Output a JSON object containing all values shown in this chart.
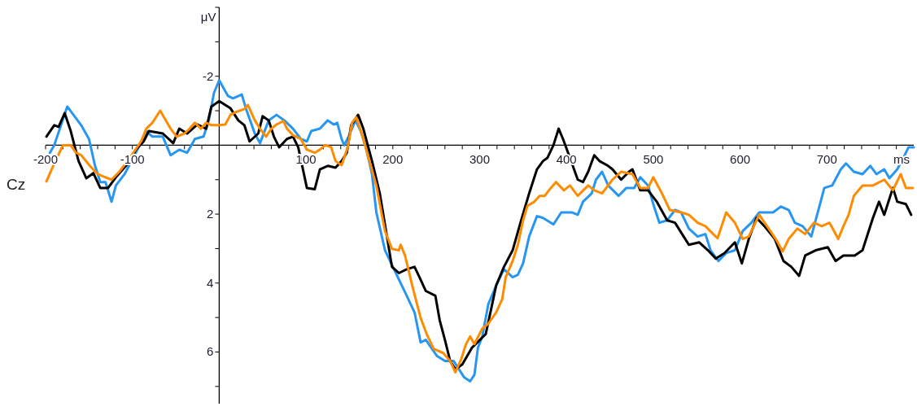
{
  "chart_data": {
    "type": "line",
    "title": "Cz",
    "xlabel": "ms",
    "ylabel": "μV",
    "xlim": [
      -200,
      800
    ],
    "ylim": [
      7.5,
      -4
    ],
    "xticks": [
      -200,
      {
        "value": -180,
        "label": null
      },
      {
        "value": -160,
        "label": null
      },
      {
        "value": -140,
        "label": null
      },
      {
        "value": -120,
        "label": null
      },
      -100,
      {
        "value": -80,
        "label": null
      },
      {
        "value": -60,
        "label": null
      },
      {
        "value": -40,
        "label": null
      },
      {
        "value": -20,
        "label": null
      },
      {
        "value": 0,
        "label": null
      },
      {
        "value": 20,
        "label": null
      },
      {
        "value": 40,
        "label": null
      },
      {
        "value": 60,
        "label": null
      },
      {
        "value": 80,
        "label": null
      },
      100,
      {
        "value": 120,
        "label": null
      },
      {
        "value": 140,
        "label": null
      },
      {
        "value": 160,
        "label": null
      },
      {
        "value": 180,
        "label": null
      },
      200,
      {
        "value": 220,
        "label": null
      },
      {
        "value": 240,
        "label": null
      },
      {
        "value": 260,
        "label": null
      },
      {
        "value": 280,
        "label": null
      },
      300,
      {
        "value": 320,
        "label": null
      },
      {
        "value": 340,
        "label": null
      },
      {
        "value": 360,
        "label": null
      },
      {
        "value": 380,
        "label": null
      },
      400,
      {
        "value": 420,
        "label": null
      },
      {
        "value": 440,
        "label": null
      },
      {
        "value": 460,
        "label": null
      },
      {
        "value": 480,
        "label": null
      },
      500,
      {
        "value": 520,
        "label": null
      },
      {
        "value": 540,
        "label": null
      },
      {
        "value": 560,
        "label": null
      },
      {
        "value": 580,
        "label": null
      },
      600,
      {
        "value": 620,
        "label": null
      },
      {
        "value": 640,
        "label": null
      },
      {
        "value": 660,
        "label": null
      },
      {
        "value": 680,
        "label": null
      },
      700,
      {
        "value": 720,
        "label": null
      },
      {
        "value": 740,
        "label": null
      },
      {
        "value": 760,
        "label": null
      },
      {
        "value": 780,
        "label": null
      }
    ],
    "yticks": [
      {
        "value": -4,
        "label": null
      },
      {
        "value": -3,
        "label": null
      },
      -2,
      {
        "value": -1,
        "label": null
      },
      {
        "value": 0,
        "label": null
      },
      {
        "value": 1,
        "label": null
      },
      2,
      {
        "value": 3,
        "label": null
      },
      4,
      {
        "value": 5,
        "label": null
      },
      6,
      {
        "value": 7,
        "label": null
      }
    ],
    "series": [
      {
        "color": "#2896f0",
        "x": [
          -195,
          -190,
          -175,
          -159,
          -150,
          -143,
          -137,
          -131,
          -124,
          -119,
          -109,
          -96,
          -84,
          -77,
          -65,
          -56,
          -46,
          -37,
          -28,
          -18,
          -12,
          -6,
          0,
          10,
          16,
          26,
          31,
          41,
          47,
          57,
          66,
          75,
          85,
          94,
          101,
          106,
          116,
          125,
          132,
          136,
          141,
          144,
          149,
          157,
          163,
          169,
          176,
          181,
          191,
          209,
          216,
          225,
          232,
          238,
          251,
          260,
          270,
          282,
          289,
          294,
          298,
          303,
          310,
          319,
          328,
          338,
          344,
          350,
          357,
          366,
          373,
          385,
          394,
          406,
          413,
          419,
          429,
          434,
          441,
          448,
          460,
          469,
          478,
          485,
          494,
          500,
          507,
          516,
          525,
          532,
          541,
          551,
          560,
          566,
          575,
          584,
          594,
          603,
          613,
          622,
          638,
          647,
          656,
          663,
          672,
          682,
          687,
          697,
          706,
          716,
          722,
          731,
          741,
          750,
          757,
          766,
          772,
          781,
          788,
          794,
          800
        ],
        "values": [
          0.22,
          0.0,
          -1.12,
          -0.58,
          -0.18,
          0.6,
          1.07,
          1.07,
          1.64,
          1.17,
          0.84,
          0.22,
          -0.41,
          -0.25,
          -0.25,
          0.29,
          0.13,
          0.22,
          -0.18,
          -0.25,
          -0.72,
          -1.52,
          -1.88,
          -1.43,
          -1.36,
          -1.47,
          -1.05,
          -0.34,
          -0.06,
          -0.72,
          -0.88,
          -0.72,
          -0.48,
          -0.18,
          -0.11,
          -0.41,
          -0.48,
          -0.72,
          -0.6,
          -0.65,
          -0.18,
          0.0,
          -0.25,
          -0.72,
          -0.41,
          0.06,
          0.84,
          1.95,
          3.05,
          4.0,
          4.37,
          4.85,
          5.72,
          5.65,
          6.12,
          6.26,
          6.26,
          6.73,
          6.85,
          6.66,
          5.88,
          5.55,
          4.61,
          4.07,
          3.6,
          3.83,
          3.76,
          3.43,
          2.65,
          2.06,
          2.11,
          2.3,
          1.95,
          1.95,
          2.02,
          1.64,
          1.4,
          1.0,
          0.77,
          1.17,
          1.47,
          1.24,
          1.24,
          0.93,
          1.17,
          1.71,
          2.25,
          2.18,
          1.88,
          1.95,
          2.42,
          2.65,
          2.58,
          3.05,
          3.36,
          3.13,
          3.05,
          2.49,
          2.25,
          1.95,
          1.95,
          1.78,
          1.88,
          2.25,
          2.35,
          2.65,
          2.18,
          1.24,
          1.17,
          0.7,
          0.53,
          0.77,
          0.84,
          0.6,
          0.84,
          0.7,
          0.96,
          0.7,
          0.37,
          0.06,
          0.06
        ]
      },
      {
        "color": "#000000",
        "x": [
          -199,
          -190,
          -185,
          -178,
          -171,
          -162,
          -153,
          -145,
          -137,
          -128,
          -119,
          -105,
          -96,
          -87,
          -81,
          -65,
          -53,
          -46,
          -37,
          -25,
          -15,
          -9,
          0,
          13,
          22,
          29,
          35,
          45,
          50,
          57,
          63,
          69,
          78,
          85,
          91,
          101,
          110,
          116,
          125,
          134,
          141,
          147,
          152,
          160,
          166,
          176,
          185,
          199,
          207,
          216,
          225,
          232,
          238,
          249,
          254,
          260,
          266,
          272,
          280,
          291,
          307,
          313,
          319,
          328,
          338,
          347,
          357,
          366,
          373,
          378,
          385,
          391,
          396,
          404,
          413,
          419,
          425,
          432,
          438,
          448,
          453,
          463,
          472,
          476,
          485,
          494,
          504,
          516,
          525,
          535,
          541,
          553,
          563,
          572,
          582,
          594,
          602,
          610,
          619,
          628,
          640,
          650,
          659,
          668,
          675,
          687,
          701,
          710,
          719,
          732,
          741,
          753,
          760,
          766,
          776,
          781,
          791,
          797
        ],
        "values": [
          -0.25,
          -0.58,
          -0.53,
          -0.93,
          -0.41,
          0.46,
          0.96,
          0.81,
          1.24,
          1.24,
          0.93,
          0.53,
          0.13,
          -0.11,
          -0.41,
          -0.34,
          -0.06,
          -0.48,
          -0.34,
          -0.6,
          -0.48,
          -1.12,
          -1.28,
          -1.07,
          -0.72,
          -0.58,
          -0.11,
          -0.34,
          -0.84,
          -0.72,
          -0.25,
          0.06,
          -0.18,
          -0.25,
          0.06,
          1.24,
          1.28,
          0.7,
          0.6,
          0.65,
          0.46,
          0.22,
          -0.58,
          -0.88,
          -0.48,
          0.46,
          1.4,
          3.53,
          3.71,
          3.6,
          3.53,
          3.9,
          4.23,
          4.37,
          5.08,
          5.65,
          6.26,
          6.5,
          6.36,
          5.88,
          5.48,
          4.78,
          4.07,
          3.53,
          3.05,
          2.25,
          1.4,
          0.7,
          0.46,
          0.37,
          0.0,
          -0.48,
          -0.18,
          0.37,
          1.0,
          1.07,
          0.77,
          0.29,
          0.46,
          0.6,
          0.7,
          1.0,
          0.77,
          0.7,
          1.31,
          1.31,
          1.64,
          2.18,
          2.25,
          2.65,
          2.89,
          2.82,
          3.05,
          3.29,
          3.13,
          2.82,
          3.43,
          2.72,
          2.11,
          2.35,
          2.72,
          3.36,
          3.53,
          3.79,
          3.2,
          3.05,
          2.96,
          3.36,
          3.2,
          3.2,
          3.05,
          2.11,
          1.64,
          2.02,
          1.24,
          1.64,
          1.71,
          2.02
        ]
      },
      {
        "color": "#ff8c00",
        "x": [
          -199,
          -190,
          -180,
          -171,
          -165,
          -159,
          -149,
          -140,
          -131,
          -124,
          -115,
          -103,
          -90,
          -84,
          -77,
          -68,
          -56,
          -49,
          -40,
          -34,
          -28,
          -21,
          -15,
          -9,
          0,
          7,
          13,
          19,
          29,
          33,
          41,
          47,
          54,
          60,
          66,
          74,
          78,
          85,
          94,
          101,
          110,
          116,
          122,
          129,
          134,
          141,
          148,
          153,
          158,
          166,
          172,
          181,
          188,
          191,
          199,
          207,
          209,
          214,
          223,
          232,
          239,
          247,
          258,
          266,
          272,
          279,
          284,
          289,
          294,
          303,
          310,
          319,
          326,
          330,
          338,
          344,
          350,
          355,
          363,
          369,
          375,
          382,
          388,
          397,
          404,
          413,
          425,
          432,
          441,
          453,
          463,
          476,
          485,
          494,
          500,
          510,
          519,
          532,
          541,
          551,
          560,
          569,
          574,
          584,
          594,
          603,
          610,
          622,
          631,
          641,
          649,
          656,
          666,
          675,
          685,
          694,
          703,
          713,
          719,
          725,
          731,
          741,
          753,
          766,
          776,
          785,
          791,
          799
        ],
        "values": [
          1.05,
          0.53,
          0.0,
          0.0,
          0.22,
          0.29,
          0.6,
          0.84,
          0.93,
          1.0,
          0.77,
          0.37,
          -0.11,
          -0.48,
          -0.65,
          -1.0,
          -0.48,
          -0.25,
          -0.34,
          -0.48,
          -0.65,
          -0.48,
          -0.65,
          -0.58,
          -0.58,
          -0.6,
          -0.88,
          -0.96,
          -1.05,
          -1.17,
          -0.72,
          -0.48,
          -0.25,
          -0.48,
          -0.6,
          -0.7,
          -0.48,
          -0.29,
          -0.18,
          0.13,
          0.22,
          0.13,
          0.0,
          0.06,
          0.46,
          0.58,
          0.06,
          -0.65,
          -0.81,
          -0.18,
          0.37,
          1.17,
          2.11,
          2.49,
          3.01,
          3.05,
          2.89,
          3.2,
          4.14,
          5.01,
          5.48,
          5.91,
          6.03,
          6.26,
          6.59,
          6.19,
          5.79,
          5.55,
          5.77,
          5.32,
          5.18,
          4.85,
          4.47,
          3.83,
          3.36,
          2.89,
          2.18,
          1.76,
          1.64,
          1.47,
          1.47,
          1.24,
          1.07,
          1.31,
          1.17,
          1.47,
          1.17,
          1.31,
          1.4,
          1.0,
          0.77,
          0.84,
          1.24,
          1.24,
          0.93,
          1.4,
          1.88,
          1.95,
          2.02,
          2.25,
          2.35,
          2.58,
          2.7,
          1.95,
          2.25,
          2.72,
          2.65,
          2.02,
          2.35,
          2.72,
          3.08,
          2.72,
          2.42,
          2.58,
          2.25,
          2.35,
          2.25,
          2.72,
          2.35,
          2.02,
          1.47,
          1.17,
          1.17,
          1.0,
          1.31,
          0.84,
          1.24,
          1.24
        ]
      }
    ]
  }
}
